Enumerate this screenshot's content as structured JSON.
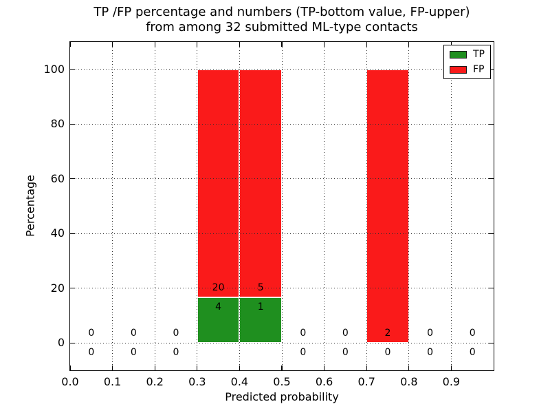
{
  "figure": {
    "title_line1": "TP /FP percentage and numbers (TP-bottom value, FP-upper)",
    "title_line2": "from among 32 submitted ML-type contacts"
  },
  "chart_data": {
    "type": "bar",
    "stacked": true,
    "title": "TP /FP percentage and numbers (TP-bottom value, FP-upper)\nfrom among 32 submitted ML-type contacts",
    "xlabel": "Predicted probability",
    "ylabel": "Percentage",
    "xlim": [
      0.0,
      1.0
    ],
    "ylim": [
      -10,
      110
    ],
    "xticks": [
      "0.0",
      "0.1",
      "0.2",
      "0.3",
      "0.4",
      "0.5",
      "0.6",
      "0.7",
      "0.8",
      "0.9"
    ],
    "yticks": [
      0,
      20,
      40,
      60,
      80,
      100
    ],
    "grid": "dotted",
    "bin_edges": [
      0.0,
      0.1,
      0.2,
      0.3,
      0.4,
      0.5,
      0.6,
      0.7,
      0.8,
      0.9,
      1.0
    ],
    "series": [
      {
        "name": "TP",
        "color": "#1f8f1f",
        "counts": [
          0,
          0,
          0,
          4,
          1,
          0,
          0,
          0,
          0,
          0
        ],
        "pct": [
          0,
          0,
          0,
          16.667,
          16.667,
          0,
          0,
          0,
          0,
          0
        ]
      },
      {
        "name": "FP",
        "color": "#fa1a1a",
        "counts": [
          0,
          0,
          0,
          20,
          5,
          0,
          0,
          2,
          0,
          0
        ],
        "pct": [
          0,
          0,
          0,
          83.333,
          83.333,
          0,
          0,
          100,
          0,
          0
        ]
      }
    ],
    "legend": {
      "position": "upper right",
      "entries": [
        "TP",
        "FP"
      ]
    }
  }
}
